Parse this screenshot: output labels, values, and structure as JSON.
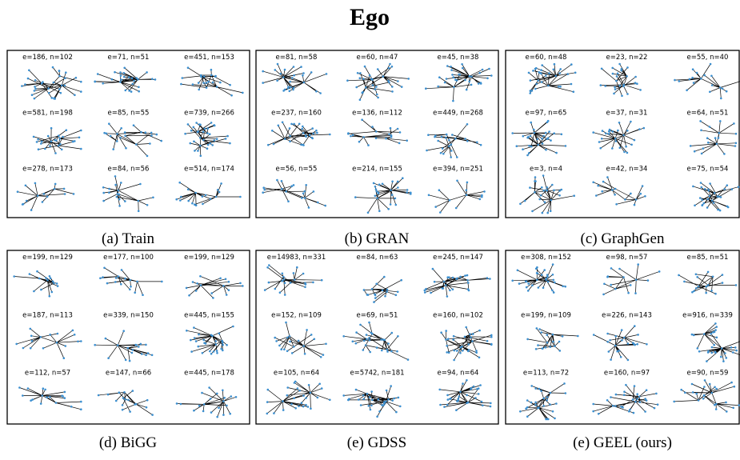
{
  "title": "Ego",
  "panels": [
    {
      "caption": "(a) Train",
      "graphs": [
        "e=186, n=102",
        "e=71, n=51",
        "e=451, n=153",
        "e=581, n=198",
        "e=85, n=55",
        "e=739, n=266",
        "e=278, n=173",
        "e=84, n=56",
        "e=514, n=174"
      ]
    },
    {
      "caption": "(b) GRAN",
      "graphs": [
        "e=81, n=58",
        "e=60, n=47",
        "e=45, n=38",
        "e=237, n=160",
        "e=136, n=112",
        "e=449, n=268",
        "e=56, n=55",
        "e=214, n=155",
        "e=394, n=251"
      ]
    },
    {
      "caption": "(c) GraphGen",
      "graphs": [
        "e=60, n=48",
        "e=23, n=22",
        "e=55, n=40",
        "e=97, n=65",
        "e=37, n=31",
        "e=64, n=51",
        "e=3, n=4",
        "e=42, n=34",
        "e=75, n=54"
      ]
    },
    {
      "caption": "(d) BiGG",
      "graphs": [
        "e=199, n=129",
        "e=177, n=100",
        "e=199, n=129",
        "e=187, n=113",
        "e=339, n=150",
        "e=445, n=155",
        "e=112, n=57",
        "e=147, n=66",
        "e=445, n=178"
      ]
    },
    {
      "caption": "(e) GDSS",
      "graphs": [
        "e=14983, n=331",
        "e=84, n=63",
        "e=245, n=147",
        "e=152, n=109",
        "e=69, n=51",
        "e=160, n=102",
        "e=105, n=64",
        "e=5742, n=181",
        "e=94, n=64"
      ]
    },
    {
      "caption": "(e) GEEL (ours)",
      "graphs": [
        "e=308, n=152",
        "e=98, n=57",
        "e=85, n=51",
        "e=199, n=109",
        "e=226, n=143",
        "e=916, n=339",
        "e=113, n=72",
        "e=160, n=97",
        "e=90, n=59"
      ]
    }
  ]
}
